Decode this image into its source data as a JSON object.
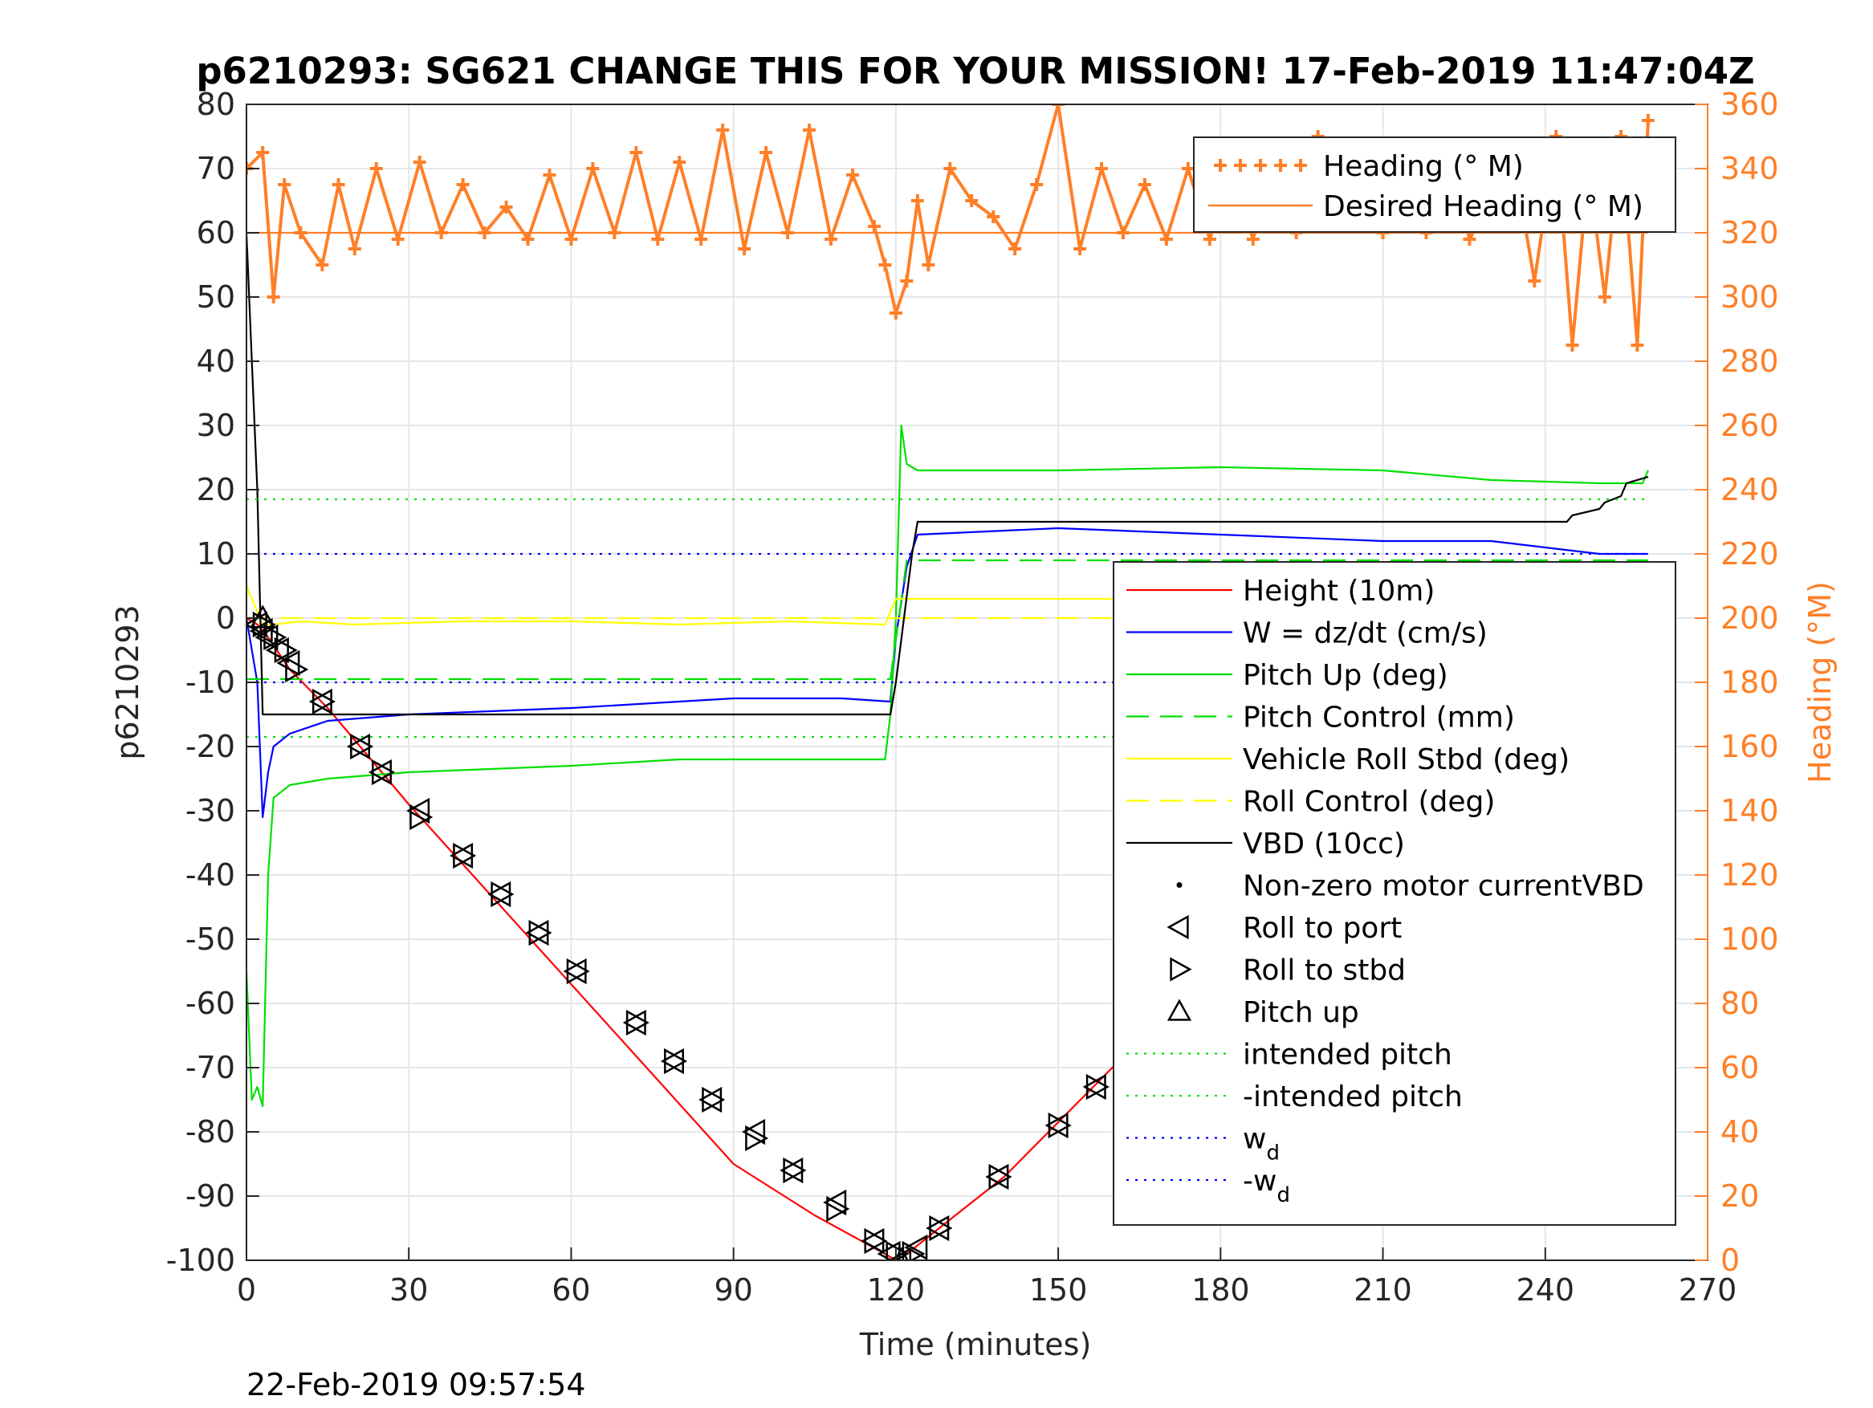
{
  "chart_data": {
    "type": "line",
    "title": "p6210293: SG621 CHANGE THIS FOR YOUR MISSION! 17-Feb-2019 11:47:04Z",
    "xlabel": "Time (minutes)",
    "ylabel_left": "p6210293",
    "ylabel_right": "Heading (°M)",
    "footer": "22-Feb-2019 09:57:54",
    "xlim": [
      0,
      270
    ],
    "ylim_left": [
      -100,
      80
    ],
    "ylim_right": [
      0,
      360
    ],
    "x_ticks": [
      "0",
      "30",
      "60",
      "90",
      "120",
      "150",
      "180",
      "210",
      "240",
      "270"
    ],
    "y_ticks_left": [
      "80",
      "70",
      "60",
      "50",
      "40",
      "30",
      "20",
      "10",
      "0",
      "-10",
      "-20",
      "-30",
      "-40",
      "-50",
      "-60",
      "-70",
      "-80",
      "-90",
      "-100"
    ],
    "y_ticks_right": [
      "360",
      "340",
      "320",
      "300",
      "280",
      "260",
      "240",
      "220",
      "200",
      "180",
      "160",
      "140",
      "120",
      "100",
      "80",
      "60",
      "40",
      "20",
      "0"
    ],
    "grid": true,
    "legend_right_axis": {
      "placement": "top-right",
      "entries": [
        {
          "label": "Heading (° M)"
        },
        {
          "label": "Desired Heading (° M)"
        }
      ]
    },
    "legend_left_axis": {
      "placement": "right",
      "entries": [
        {
          "label": "Height (10m)"
        },
        {
          "label": "W = dz/dt (cm/s)"
        },
        {
          "label": "Pitch Up (deg)"
        },
        {
          "label": "Pitch Control (mm)"
        },
        {
          "label": "Vehicle Roll Stbd (deg)"
        },
        {
          "label": "Roll Control (deg)"
        },
        {
          "label": "VBD (10cc)"
        },
        {
          "label": "Non-zero motor currentVBD"
        },
        {
          "label": "Roll to port"
        },
        {
          "label": "Roll to stbd"
        },
        {
          "label": "Pitch up"
        },
        {
          "label": "intended pitch"
        },
        {
          "label": "-intended pitch"
        },
        {
          "label": "w",
          "sub": "d"
        },
        {
          "label": "-w",
          "sub": "d"
        }
      ]
    },
    "series": [
      {
        "name": "Height (10m)",
        "color": "#ff0000",
        "axis": "left",
        "x": [
          0,
          2,
          4,
          8,
          15,
          30,
          45,
          60,
          75,
          90,
          105,
          118,
          120,
          122,
          125,
          140,
          160,
          180,
          200,
          220,
          240,
          250,
          259
        ],
        "y": [
          0,
          -1,
          -3,
          -8,
          -14,
          -29,
          -43,
          -57,
          -71,
          -85,
          -93,
          -99,
          -100,
          -99,
          -97,
          -87,
          -70,
          -54,
          -38,
          -23,
          -10,
          -5,
          0
        ]
      },
      {
        "name": "W = dz/dt (cm/s)",
        "color": "#0000ff",
        "axis": "left",
        "x": [
          0,
          2,
          3,
          4,
          5,
          8,
          15,
          30,
          60,
          90,
          110,
          119,
          120,
          122,
          124,
          150,
          180,
          210,
          230,
          240,
          250,
          259
        ],
        "y": [
          0,
          -10,
          -31,
          -24,
          -20,
          -18,
          -16,
          -15,
          -14,
          -12.5,
          -12.5,
          -13,
          -3,
          8,
          13,
          14,
          13,
          12,
          12,
          11,
          10,
          10
        ]
      },
      {
        "name": "Pitch Up (deg)",
        "color": "#00e000",
        "axis": "left",
        "x": [
          0,
          1,
          2,
          3,
          4,
          5,
          8,
          15,
          30,
          60,
          80,
          100,
          118,
          119,
          120,
          121,
          122,
          124,
          150,
          180,
          210,
          230,
          250,
          258,
          259
        ],
        "y": [
          -55,
          -75,
          -73,
          -76,
          -40,
          -28,
          -26,
          -25,
          -24,
          -23,
          -22,
          -22,
          -22,
          -15,
          0,
          30,
          24,
          23,
          23,
          23.5,
          23,
          21.5,
          21,
          21,
          23
        ]
      },
      {
        "name": "Pitch Control (mm)",
        "color": "#00e000",
        "dash": true,
        "axis": "left",
        "x": [
          0,
          4,
          119,
          122,
          259
        ],
        "y": [
          -9.5,
          -9.5,
          -9.5,
          9,
          9
        ]
      },
      {
        "name": "Vehicle Roll Stbd (deg)",
        "color": "#ffff00",
        "axis": "left",
        "x": [
          0,
          3,
          5,
          10,
          20,
          40,
          60,
          80,
          100,
          118,
          120,
          122,
          150,
          180,
          210,
          240,
          259
        ],
        "y": [
          5,
          -1,
          -1,
          -0.5,
          -1,
          -0.5,
          -0.5,
          -1,
          -0.5,
          -1,
          3,
          3,
          3,
          3,
          3,
          3,
          2
        ]
      },
      {
        "name": "Roll Control (deg)",
        "color": "#ffff00",
        "dash": true,
        "axis": "left",
        "x": [
          0,
          10,
          40,
          80,
          118,
          122,
          160,
          200,
          259
        ],
        "y": [
          0,
          0,
          0,
          0,
          0,
          0,
          0,
          0,
          0
        ]
      },
      {
        "name": "VBD (10cc)",
        "color": "#000000",
        "axis": "left",
        "x": [
          0,
          1,
          2,
          3,
          119,
          120,
          123,
          124,
          244,
          245,
          250,
          251,
          254,
          255,
          259
        ],
        "y": [
          60,
          40,
          20,
          -15,
          -15,
          -10,
          10,
          15,
          15,
          16,
          17,
          18,
          19,
          21,
          22
        ]
      },
      {
        "name": "intended pitch",
        "color": "#00e000",
        "dotted": true,
        "axis": "left",
        "x": [
          0,
          259
        ],
        "y": [
          18.5,
          18.5
        ]
      },
      {
        "name": "-intended pitch",
        "color": "#00e000",
        "dotted": true,
        "axis": "left",
        "x": [
          0,
          259
        ],
        "y": [
          -18.5,
          -18.5
        ]
      },
      {
        "name": "w_d",
        "color": "#0000ff",
        "dotted": true,
        "axis": "left",
        "x": [
          0,
          259
        ],
        "y": [
          10,
          10
        ]
      },
      {
        "name": "-w_d",
        "color": "#0000ff",
        "dotted": true,
        "axis": "left",
        "x": [
          0,
          259
        ],
        "y": [
          -10,
          -10
        ]
      },
      {
        "name": "Heading (° M)",
        "color": "#ff7f27",
        "marker": "+",
        "axis": "right",
        "x": [
          0,
          3,
          5,
          7,
          10,
          14,
          17,
          20,
          24,
          28,
          32,
          36,
          40,
          44,
          48,
          52,
          56,
          60,
          64,
          68,
          72,
          76,
          80,
          84,
          88,
          92,
          96,
          100,
          104,
          108,
          112,
          116,
          118,
          120,
          122,
          124,
          126,
          130,
          134,
          138,
          142,
          146,
          150,
          154,
          158,
          162,
          166,
          170,
          174,
          178,
          182,
          186,
          190,
          194,
          198,
          202,
          206,
          210,
          214,
          218,
          222,
          226,
          230,
          234,
          238,
          242,
          245,
          248,
          251,
          254,
          257,
          259
        ],
        "y": [
          340,
          345,
          300,
          335,
          320,
          310,
          335,
          315,
          340,
          318,
          342,
          320,
          335,
          320,
          328,
          318,
          338,
          318,
          340,
          320,
          345,
          318,
          342,
          318,
          352,
          315,
          345,
          320,
          352,
          318,
          338,
          322,
          310,
          295,
          305,
          330,
          310,
          340,
          330,
          325,
          315,
          335,
          360,
          315,
          340,
          320,
          335,
          318,
          340,
          318,
          338,
          318,
          345,
          320,
          350,
          322,
          338,
          320,
          345,
          320,
          348,
          318,
          330,
          345,
          305,
          350,
          285,
          340,
          300,
          350,
          285,
          355
        ]
      },
      {
        "name": "Desired Heading (° M)",
        "color": "#ff7f27",
        "axis": "right",
        "x": [
          0,
          259
        ],
        "y": [
          320,
          320
        ]
      }
    ],
    "markers": [
      {
        "name": "Roll to port",
        "shape": "triangle-left",
        "x": [
          2,
          3,
          4,
          6,
          8,
          14,
          21,
          25,
          32,
          40,
          47,
          54,
          61,
          72,
          79,
          86,
          94,
          101,
          109,
          116,
          119,
          121,
          124,
          128,
          139,
          150,
          157,
          164,
          171,
          176,
          184,
          191,
          198,
          206,
          211,
          216,
          221,
          227,
          232,
          239,
          243,
          252,
          255,
          258
        ],
        "y": [
          -1,
          -2,
          -3,
          -5,
          -7,
          -13,
          -20,
          -24,
          -30,
          -37,
          -43,
          -49,
          -55,
          -63,
          -69,
          -75,
          -80,
          -86,
          -91,
          -97,
          -99,
          -100,
          -98,
          -95,
          -87,
          -79,
          -73,
          -67,
          -61,
          -58,
          -52,
          -47,
          -41,
          -35,
          -32,
          -29,
          -26,
          -21,
          -18,
          -13,
          -10,
          -5,
          -3,
          -1
        ]
      },
      {
        "name": "Roll to stbd",
        "shape": "triangle-right",
        "x": [
          3,
          5,
          7,
          9,
          14,
          21,
          25,
          32,
          40,
          47,
          54,
          61,
          72,
          79,
          86,
          94,
          101,
          109,
          116,
          120,
          123,
          128,
          139,
          150,
          157,
          164,
          172,
          177,
          184,
          192,
          199,
          207,
          212,
          217,
          222,
          228,
          233,
          240,
          244,
          253,
          256,
          259
        ],
        "y": [
          -1,
          -3,
          -5,
          -8,
          -13,
          -20,
          -24,
          -31,
          -37,
          -43,
          -49,
          -55,
          -63,
          -69,
          -75,
          -81,
          -86,
          -92,
          -97,
          -99,
          -99,
          -95,
          -87,
          -79,
          -73,
          -67,
          -61,
          -58,
          -52,
          -47,
          -41,
          -35,
          -32,
          -29,
          -26,
          -20,
          -18,
          -13,
          -10,
          -5,
          -3,
          -1
        ]
      },
      {
        "name": "Pitch up",
        "shape": "triangle-up",
        "x": [
          3,
          121,
          171
        ],
        "y": [
          0,
          -100,
          -61
        ]
      }
    ]
  }
}
